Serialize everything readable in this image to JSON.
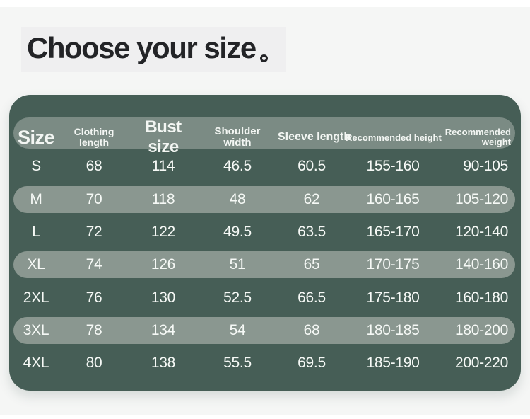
{
  "title": {
    "text": "Choose your size",
    "mark": "。"
  },
  "colors": {
    "page_bg": "#f5f6f5",
    "title_box": "#efeff0",
    "title_text": "#232427",
    "panel_green": "#465e56",
    "header_pill": "#7b8b84",
    "stripe_pill": "#8a9790",
    "table_text": "#f6f9f6"
  },
  "chart_data": {
    "type": "table",
    "title": "Choose your size",
    "columns": [
      "Size",
      "Clothing length",
      "Bust size",
      "Shoulder width",
      "Sleeve length",
      "Recommended height",
      "Recommended weight"
    ],
    "rows": [
      [
        "S",
        "68",
        "114",
        "46.5",
        "60.5",
        "155-160",
        "90-105"
      ],
      [
        "M",
        "70",
        "118",
        "48",
        "62",
        "160-165",
        "105-120"
      ],
      [
        "L",
        "72",
        "122",
        "49.5",
        "63.5",
        "165-170",
        "120-140"
      ],
      [
        "XL",
        "74",
        "126",
        "51",
        "65",
        "170-175",
        "140-160"
      ],
      [
        "2XL",
        "76",
        "130",
        "52.5",
        "66.5",
        "175-180",
        "160-180"
      ],
      [
        "3XL",
        "78",
        "134",
        "54",
        "68",
        "180-185",
        "180-200"
      ],
      [
        "4XL",
        "80",
        "138",
        "55.5",
        "69.5",
        "185-190",
        "200-220"
      ]
    ],
    "layout": {
      "striped_rows": [
        "M",
        "XL",
        "3XL"
      ],
      "header_style": "pill",
      "grid": "off"
    }
  }
}
